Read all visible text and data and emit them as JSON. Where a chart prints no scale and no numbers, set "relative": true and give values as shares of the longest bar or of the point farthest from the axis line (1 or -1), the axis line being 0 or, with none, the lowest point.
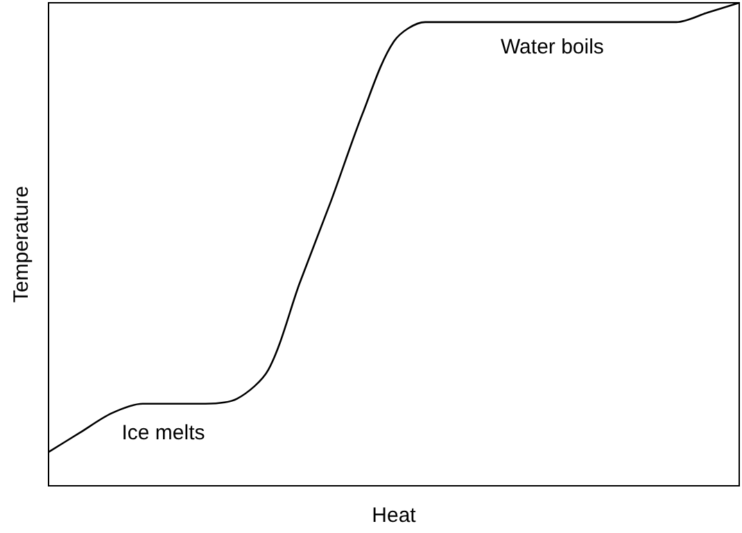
{
  "chart_data": {
    "type": "line",
    "relative": true,
    "xlabel": "Heat",
    "ylabel": "Temperature",
    "categories": [
      null,
      null,
      null,
      null,
      null,
      null,
      null,
      null,
      null,
      null,
      null,
      null,
      null,
      null,
      null,
      null,
      null,
      null,
      null,
      null,
      null,
      null,
      null
    ],
    "series": [
      {
        "color": "#000000",
        "values": [
          0.07,
          0.11,
          0.15,
          0.17,
          0.17,
          0.17,
          0.18,
          0.24,
          0.42,
          0.59,
          0.77,
          0.92,
          0.96,
          0.96,
          0.96,
          0.96,
          0.96,
          0.96,
          0.96,
          0.96,
          0.96,
          0.98,
          1
        ]
      }
    ],
    "annotations": [
      "Ice melts",
      "Water boils"
    ],
    "marker": "none",
    "grid": false
  }
}
